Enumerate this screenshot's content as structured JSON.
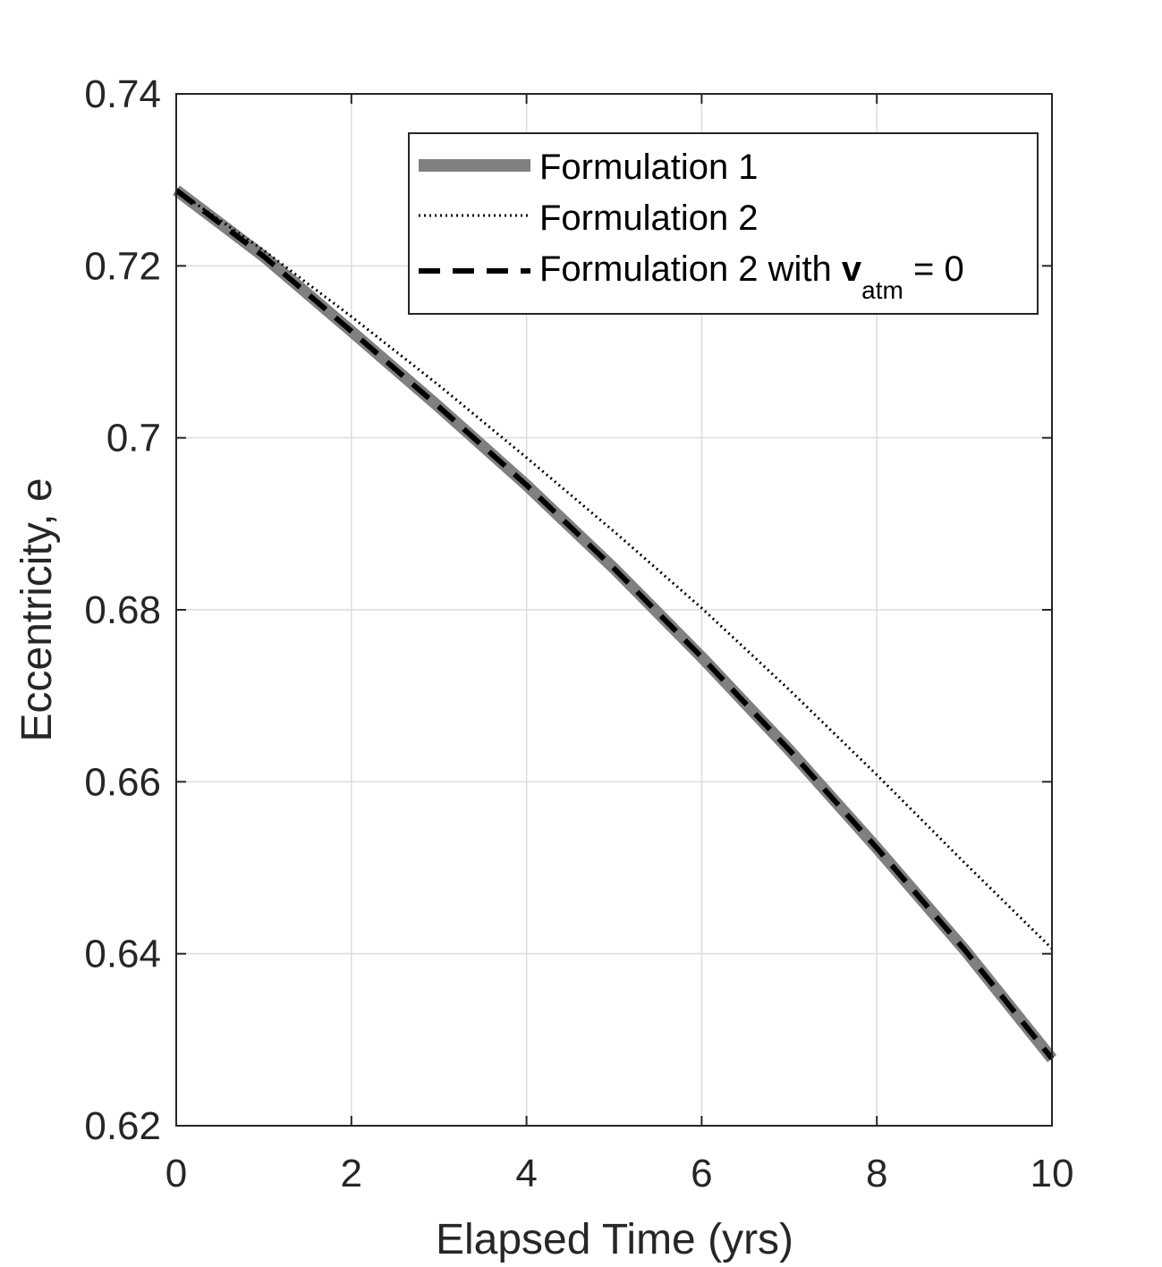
{
  "chart_data": {
    "type": "line",
    "xlabel": "Elapsed Time (yrs)",
    "ylabel": "Eccentricity, e",
    "xlim": [
      0,
      10
    ],
    "ylim": [
      0.62,
      0.74
    ],
    "xticks": [
      0,
      2,
      4,
      6,
      8,
      10
    ],
    "xtick_labels": [
      "0",
      "2",
      "4",
      "6",
      "8",
      "10"
    ],
    "yticks": [
      0.62,
      0.64,
      0.66,
      0.68,
      0.7,
      0.72,
      0.74
    ],
    "ytick_labels": [
      "0.62",
      "0.64",
      "0.66",
      "0.68",
      "0.7",
      "0.72",
      "0.74"
    ],
    "grid": true,
    "legend_position": "top-right",
    "x": [
      0,
      1,
      2,
      3,
      4,
      5,
      6,
      7,
      8,
      9,
      10
    ],
    "series": [
      {
        "name": "Formulation 1",
        "style": "solid-thick",
        "color": "#808080",
        "values": [
          0.7288,
          0.7211,
          0.7124,
          0.7036,
          0.6945,
          0.6848,
          0.6745,
          0.6637,
          0.6523,
          0.6405,
          0.6278
        ]
      },
      {
        "name": "Formulation 2",
        "style": "dotted",
        "color": "#000000",
        "values": [
          0.7288,
          0.7218,
          0.7141,
          0.7061,
          0.6977,
          0.6891,
          0.6802,
          0.6707,
          0.6608,
          0.6506,
          0.6406
        ]
      },
      {
        "name": "Formulation 2 with ",
        "name_bold": "v",
        "name_sub": "atm",
        "name_suffix": " = 0",
        "style": "dashed",
        "color": "#000000",
        "values": [
          0.7288,
          0.7211,
          0.7124,
          0.7036,
          0.6945,
          0.6848,
          0.6745,
          0.6637,
          0.6523,
          0.6405,
          0.6278
        ]
      }
    ]
  }
}
